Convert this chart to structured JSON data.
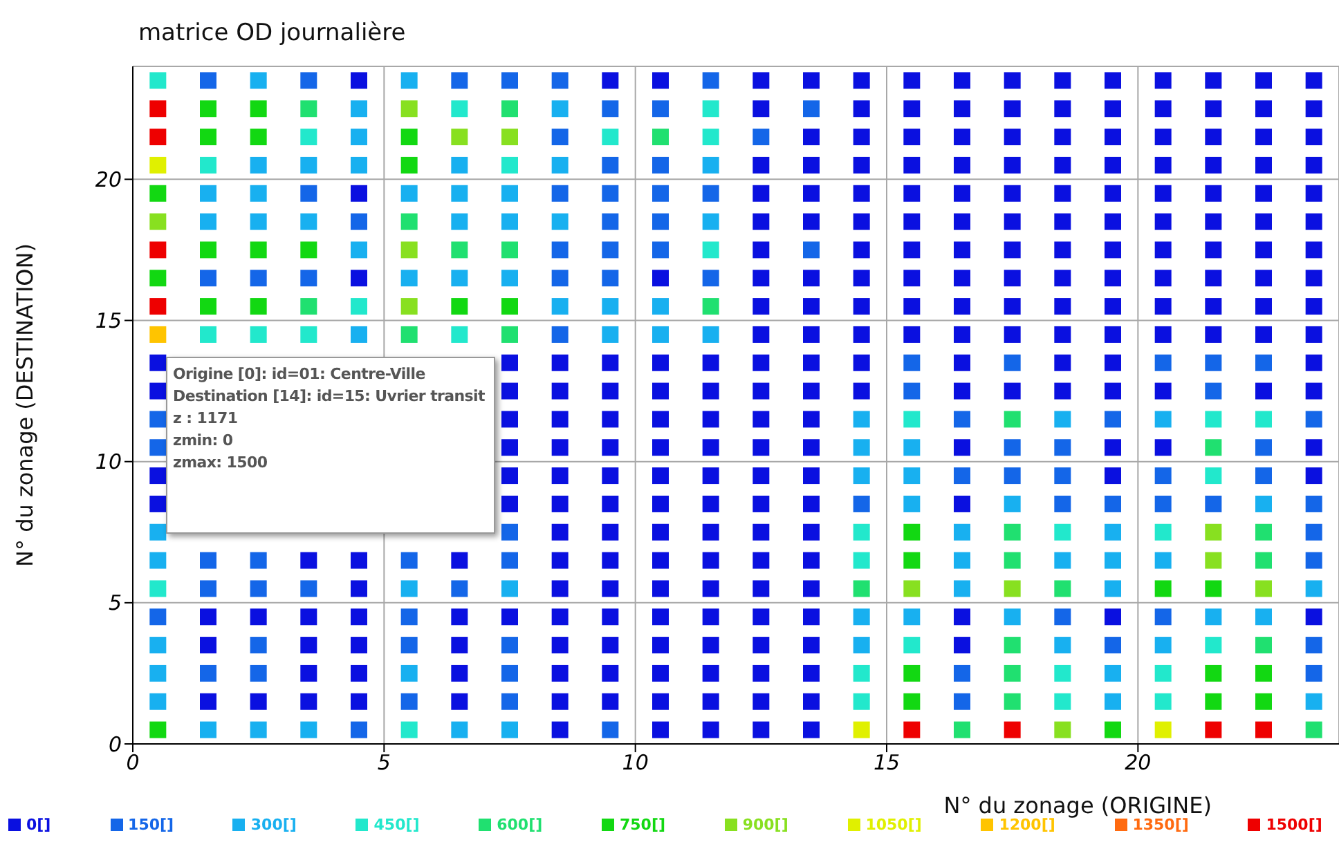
{
  "chart_data": {
    "type": "scatter",
    "title": "matrice OD journalière",
    "xlabel": "N° du zonage (ORIGINE)",
    "ylabel": "N° du zonage (DESTINATION)",
    "xlim": [
      0,
      24
    ],
    "ylim": [
      0,
      24
    ],
    "xticks": [
      0,
      5,
      10,
      15,
      20
    ],
    "yticks": [
      0,
      5,
      10,
      15,
      20
    ],
    "grid": true,
    "legend": "bottom",
    "marker": "square",
    "annotations": [
      "Origine [0]: id=01: Centre-Ville",
      "Destination [14]: id=15: Uvrier transit",
      "z : 1171",
      "zmin: 0",
      "zmax: 1500"
    ],
    "series": [
      {
        "name": "0[]",
        "color": "#0a10e0",
        "x": [
          4.5,
          9.5,
          10.5,
          12.5,
          13.5,
          14.5,
          15.5,
          16.5,
          17.5,
          18.5,
          19.5,
          20.5,
          21.5,
          22.5,
          23.5,
          12.5,
          14.5,
          15.5,
          16.5,
          17.5,
          18.5,
          19.5,
          20.5,
          21.5,
          22.5,
          23.5,
          13.5,
          14.5,
          15.5,
          16.5,
          17.5,
          18.5,
          19.5,
          20.5,
          21.5,
          22.5,
          23.5,
          12.5,
          13.5,
          14.5,
          15.5,
          16.5,
          17.5,
          18.5,
          19.5,
          20.5,
          21.5,
          22.5,
          23.5,
          4.5,
          12.5,
          13.5,
          14.5,
          15.5,
          16.5,
          17.5,
          18.5,
          19.5,
          20.5,
          21.5,
          22.5,
          23.5,
          12.5,
          13.5,
          14.5,
          15.5,
          16.5,
          17.5,
          18.5,
          19.5,
          20.5,
          21.5,
          22.5,
          23.5,
          12.5,
          14.5,
          15.5,
          16.5,
          17.5,
          18.5,
          19.5,
          20.5,
          21.5,
          22.5,
          23.5,
          4.5,
          10.5,
          12.5,
          13.5,
          14.5,
          15.5,
          16.5,
          17.5,
          18.5,
          19.5,
          20.5,
          21.5,
          22.5,
          23.5,
          12.5,
          13.5,
          14.5,
          15.5,
          16.5,
          17.5,
          18.5,
          19.5,
          20.5,
          21.5,
          22.5,
          23.5,
          12.5,
          13.5,
          14.5,
          15.5,
          16.5,
          17.5,
          18.5,
          19.5,
          20.5,
          21.5,
          22.5,
          23.5,
          0.5,
          7.5,
          8.5,
          9.5,
          10.5,
          11.5,
          12.5,
          13.5,
          14.5,
          16.5,
          18.5,
          19.5,
          23.5,
          0.5,
          7.5,
          8.5,
          9.5,
          10.5,
          11.5,
          12.5,
          13.5,
          14.5,
          16.5,
          17.5,
          18.5,
          19.5,
          20.5,
          22.5,
          23.5,
          7.5,
          8.5,
          9.5,
          10.5,
          11.5,
          12.5,
          13.5,
          7.5,
          8.5,
          9.5,
          10.5,
          11.5,
          12.5,
          13.5,
          16.5,
          19.5,
          20.5,
          23.5,
          0.5,
          7.5,
          8.5,
          9.5,
          10.5,
          11.5,
          12.5,
          13.5,
          19.5,
          23.5,
          0.5,
          7.5,
          8.5,
          9.5,
          10.5,
          11.5,
          12.5,
          13.5,
          16.5,
          8.5,
          9.5,
          10.5,
          11.5,
          12.5,
          13.5,
          3.5,
          4.5,
          6.5,
          8.5,
          9.5,
          10.5,
          11.5,
          12.5,
          13.5,
          4.5,
          8.5,
          9.5,
          10.5,
          11.5,
          12.5,
          13.5,
          1.5,
          2.5,
          3.5,
          4.5,
          6.5,
          7.5,
          8.5,
          9.5,
          10.5,
          11.5,
          12.5,
          13.5,
          16.5,
          19.5,
          23.5,
          1.5,
          3.5,
          4.5,
          6.5,
          8.5,
          9.5,
          10.5,
          11.5,
          12.5,
          13.5,
          16.5,
          3.5,
          4.5,
          6.5,
          8.5,
          9.5,
          10.5,
          11.5,
          12.5,
          13.5,
          1.5,
          2.5,
          3.5,
          4.5,
          6.5,
          8.5,
          9.5,
          10.5,
          11.5,
          12.5,
          13.5,
          8.5,
          10.5,
          11.5,
          12.5,
          13.5
        ],
        "values": [
          23.5,
          23.5,
          23.5,
          23.5,
          23.5,
          23.5,
          23.5,
          23.5,
          23.5,
          23.5,
          23.5,
          23.5,
          23.5,
          23.5,
          23.5,
          22.5,
          22.5,
          22.5,
          22.5,
          22.5,
          22.5,
          22.5,
          22.5,
          22.5,
          22.5,
          22.5,
          21.5,
          21.5,
          21.5,
          21.5,
          21.5,
          21.5,
          21.5,
          21.5,
          21.5,
          21.5,
          21.5,
          20.5,
          20.5,
          20.5,
          20.5,
          20.5,
          20.5,
          20.5,
          20.5,
          20.5,
          20.5,
          20.5,
          20.5,
          19.5,
          19.5,
          19.5,
          19.5,
          19.5,
          19.5,
          19.5,
          19.5,
          19.5,
          19.5,
          19.5,
          19.5,
          19.5,
          18.5,
          18.5,
          18.5,
          18.5,
          18.5,
          18.5,
          18.5,
          18.5,
          18.5,
          18.5,
          18.5,
          18.5,
          17.5,
          17.5,
          17.5,
          17.5,
          17.5,
          17.5,
          17.5,
          17.5,
          17.5,
          17.5,
          17.5,
          16.5,
          16.5,
          16.5,
          16.5,
          16.5,
          16.5,
          16.5,
          16.5,
          16.5,
          16.5,
          16.5,
          16.5,
          16.5,
          16.5,
          15.5,
          15.5,
          15.5,
          15.5,
          15.5,
          15.5,
          15.5,
          15.5,
          15.5,
          15.5,
          15.5,
          15.5,
          14.5,
          14.5,
          14.5,
          14.5,
          14.5,
          14.5,
          14.5,
          14.5,
          14.5,
          14.5,
          14.5,
          14.5,
          13.5,
          13.5,
          13.5,
          13.5,
          13.5,
          13.5,
          13.5,
          13.5,
          13.5,
          13.5,
          13.5,
          13.5,
          13.5,
          12.5,
          12.5,
          12.5,
          12.5,
          12.5,
          12.5,
          12.5,
          12.5,
          12.5,
          12.5,
          12.5,
          12.5,
          12.5,
          12.5,
          12.5,
          12.5,
          11.5,
          11.5,
          11.5,
          11.5,
          11.5,
          11.5,
          11.5,
          10.5,
          10.5,
          10.5,
          10.5,
          10.5,
          10.5,
          10.5,
          10.5,
          10.5,
          10.5,
          10.5,
          9.5,
          9.5,
          9.5,
          9.5,
          9.5,
          9.5,
          9.5,
          9.5,
          9.5,
          9.5,
          8.5,
          8.5,
          8.5,
          8.5,
          8.5,
          8.5,
          8.5,
          8.5,
          8.5,
          7.5,
          7.5,
          7.5,
          7.5,
          7.5,
          7.5,
          6.5,
          6.5,
          6.5,
          6.5,
          6.5,
          6.5,
          6.5,
          6.5,
          6.5,
          5.5,
          5.5,
          5.5,
          5.5,
          5.5,
          5.5,
          5.5,
          4.5,
          4.5,
          4.5,
          4.5,
          4.5,
          4.5,
          4.5,
          4.5,
          4.5,
          4.5,
          4.5,
          4.5,
          4.5,
          4.5,
          4.5,
          3.5,
          3.5,
          3.5,
          3.5,
          3.5,
          3.5,
          3.5,
          3.5,
          3.5,
          3.5,
          3.5,
          2.5,
          2.5,
          2.5,
          2.5,
          2.5,
          2.5,
          2.5,
          2.5,
          2.5,
          1.5,
          1.5,
          1.5,
          1.5,
          1.5,
          1.5,
          1.5,
          1.5,
          1.5,
          1.5,
          1.5,
          0.5,
          0.5,
          0.5,
          0.5,
          0.5
        ]
      },
      {
        "name": "150[]",
        "color": "#1466e8",
        "x": [
          1.5,
          3.5,
          6.5,
          7.5,
          8.5,
          11.5,
          9.5,
          10.5,
          13.5,
          8.5,
          12.5,
          9.5,
          10.5,
          3.5,
          8.5,
          9.5,
          10.5,
          11.5,
          4.5,
          9.5,
          10.5,
          8.5,
          9.5,
          10.5,
          13.5,
          1.5,
          2.5,
          3.5,
          8.5,
          9.5,
          11.5,
          8.5,
          15.5,
          17.5,
          20.5,
          21.5,
          22.5,
          15.5,
          21.5,
          0.5,
          16.5,
          19.5,
          23.5,
          0.5,
          17.5,
          18.5,
          22.5,
          16.5,
          17.5,
          18.5,
          20.5,
          22.5,
          14.5,
          18.5,
          19.5,
          20.5,
          21.5,
          23.5,
          7.5,
          23.5,
          1.5,
          2.5,
          5.5,
          7.5,
          23.5,
          1.5,
          2.5,
          3.5,
          6.5,
          0.5,
          5.5,
          18.5,
          20.5,
          2.5,
          5.5,
          7.5,
          19.5,
          23.5,
          1.5,
          2.5,
          7.5,
          16.5,
          23.5,
          5.5,
          7.5,
          16.5,
          4.5,
          9.5
        ],
        "values": [
          23.5,
          23.5,
          23.5,
          23.5,
          23.5,
          23.5,
          22.5,
          22.5,
          22.5,
          21.5,
          21.5,
          20.5,
          20.5,
          19.5,
          19.5,
          19.5,
          19.5,
          19.5,
          18.5,
          18.5,
          18.5,
          17.5,
          17.5,
          17.5,
          17.5,
          16.5,
          16.5,
          16.5,
          16.5,
          16.5,
          16.5,
          14.5,
          13.5,
          13.5,
          13.5,
          13.5,
          13.5,
          12.5,
          12.5,
          11.5,
          11.5,
          11.5,
          11.5,
          10.5,
          10.5,
          10.5,
          10.5,
          9.5,
          9.5,
          9.5,
          9.5,
          9.5,
          8.5,
          8.5,
          8.5,
          8.5,
          8.5,
          8.5,
          7.5,
          7.5,
          6.5,
          6.5,
          6.5,
          6.5,
          6.5,
          5.5,
          5.5,
          5.5,
          5.5,
          4.5,
          4.5,
          4.5,
          4.5,
          3.5,
          3.5,
          3.5,
          3.5,
          3.5,
          2.5,
          2.5,
          2.5,
          2.5,
          2.5,
          1.5,
          1.5,
          1.5,
          0.5,
          0.5
        ]
      },
      {
        "name": "300[]",
        "color": "#18b0f0",
        "x": [
          2.5,
          5.5,
          4.5,
          8.5,
          4.5,
          2.5,
          3.5,
          4.5,
          6.5,
          8.5,
          11.5,
          1.5,
          2.5,
          5.5,
          6.5,
          7.5,
          1.5,
          2.5,
          3.5,
          6.5,
          7.5,
          8.5,
          11.5,
          4.5,
          5.5,
          6.5,
          7.5,
          8.5,
          9.5,
          10.5,
          4.5,
          9.5,
          10.5,
          11.5,
          14.5,
          18.5,
          20.5,
          14.5,
          15.5,
          14.5,
          15.5,
          15.5,
          17.5,
          22.5,
          0.5,
          16.5,
          19.5,
          0.5,
          16.5,
          18.5,
          19.5,
          20.5,
          5.5,
          7.5,
          16.5,
          19.5,
          23.5,
          14.5,
          15.5,
          17.5,
          21.5,
          22.5,
          0.5,
          14.5,
          18.5,
          20.5,
          0.5,
          5.5,
          19.5,
          0.5,
          19.5,
          23.5,
          1.5,
          2.5,
          3.5,
          6.5,
          7.5
        ],
        "values": [
          23.5,
          23.5,
          22.5,
          22.5,
          21.5,
          20.5,
          20.5,
          20.5,
          20.5,
          20.5,
          20.5,
          19.5,
          19.5,
          19.5,
          19.5,
          19.5,
          18.5,
          18.5,
          18.5,
          18.5,
          18.5,
          18.5,
          18.5,
          17.5,
          16.5,
          16.5,
          16.5,
          15.5,
          15.5,
          15.5,
          14.5,
          14.5,
          14.5,
          14.5,
          11.5,
          11.5,
          11.5,
          10.5,
          10.5,
          9.5,
          9.5,
          8.5,
          8.5,
          8.5,
          7.5,
          7.5,
          7.5,
          6.5,
          6.5,
          6.5,
          6.5,
          6.5,
          5.5,
          5.5,
          5.5,
          5.5,
          5.5,
          4.5,
          4.5,
          4.5,
          4.5,
          4.5,
          3.5,
          3.5,
          3.5,
          3.5,
          2.5,
          2.5,
          2.5,
          1.5,
          1.5,
          1.5,
          0.5,
          0.5,
          0.5,
          0.5,
          0.5
        ]
      },
      {
        "name": "450[]",
        "color": "#22e8cc",
        "x": [
          0.5,
          6.5,
          11.5,
          3.5,
          9.5,
          11.5,
          1.5,
          7.5,
          11.5,
          4.5,
          1.5,
          2.5,
          3.5,
          6.5,
          15.5,
          21.5,
          22.5,
          21.5,
          14.5,
          18.5,
          20.5,
          14.5,
          0.5,
          15.5,
          21.5,
          14.5,
          18.5,
          20.5,
          14.5,
          18.5,
          20.5,
          5.5
        ],
        "values": [
          23.5,
          22.5,
          22.5,
          21.5,
          21.5,
          21.5,
          20.5,
          20.5,
          17.5,
          15.5,
          14.5,
          14.5,
          14.5,
          14.5,
          11.5,
          11.5,
          11.5,
          9.5,
          7.5,
          7.5,
          7.5,
          6.5,
          5.5,
          3.5,
          3.5,
          2.5,
          2.5,
          2.5,
          1.5,
          1.5,
          1.5,
          0.5
        ]
      },
      {
        "name": "600[]",
        "color": "#20e070",
        "x": [
          3.5,
          7.5,
          10.5,
          5.5,
          6.5,
          7.5,
          3.5,
          11.5,
          5.5,
          7.5,
          17.5,
          21.5,
          17.5,
          22.5,
          17.5,
          22.5,
          14.5,
          18.5,
          17.5,
          22.5,
          17.5,
          17.5,
          16.5,
          23.5
        ],
        "values": [
          22.5,
          22.5,
          21.5,
          18.5,
          17.5,
          17.5,
          15.5,
          15.5,
          14.5,
          14.5,
          11.5,
          10.5,
          7.5,
          7.5,
          6.5,
          6.5,
          5.5,
          5.5,
          3.5,
          3.5,
          2.5,
          1.5,
          0.5,
          0.5
        ]
      },
      {
        "name": "750[]",
        "color": "#12d812",
        "x": [
          1.5,
          2.5,
          1.5,
          2.5,
          5.5,
          5.5,
          0.5,
          1.5,
          2.5,
          3.5,
          0.5,
          1.5,
          2.5,
          6.5,
          7.5,
          15.5,
          15.5,
          20.5,
          21.5,
          15.5,
          21.5,
          22.5,
          15.5,
          21.5,
          22.5,
          0.5,
          19.5
        ],
        "values": [
          22.5,
          22.5,
          21.5,
          21.5,
          21.5,
          20.5,
          19.5,
          17.5,
          17.5,
          17.5,
          16.5,
          15.5,
          15.5,
          15.5,
          15.5,
          7.5,
          6.5,
          5.5,
          5.5,
          2.5,
          2.5,
          2.5,
          1.5,
          1.5,
          1.5,
          0.5,
          0.5
        ]
      },
      {
        "name": "900[]",
        "color": "#88e020",
        "x": [
          5.5,
          6.5,
          7.5,
          0.5,
          5.5,
          5.5,
          21.5,
          21.5,
          15.5,
          17.5,
          22.5,
          18.5
        ],
        "values": [
          22.5,
          21.5,
          21.5,
          18.5,
          17.5,
          15.5,
          7.5,
          6.5,
          5.5,
          5.5,
          5.5,
          0.5
        ]
      },
      {
        "name": "1050[]",
        "color": "#e0f000",
        "x": [
          0.5,
          14.5,
          20.5
        ],
        "values": [
          20.5,
          0.5,
          0.5
        ]
      },
      {
        "name": "1200[]",
        "color": "#ffc400",
        "x": [
          0.5
        ],
        "values": [
          14.5
        ]
      },
      {
        "name": "1350[]",
        "color": "#ff6a10"
      },
      {
        "name": "1500[]",
        "color": "#ee0000",
        "x": [
          0.5,
          0.5,
          0.5,
          0.5,
          15.5,
          17.5,
          21.5,
          22.5
        ],
        "values": [
          22.5,
          21.5,
          17.5,
          15.5,
          0.5,
          0.5,
          0.5,
          0.5
        ]
      }
    ]
  }
}
